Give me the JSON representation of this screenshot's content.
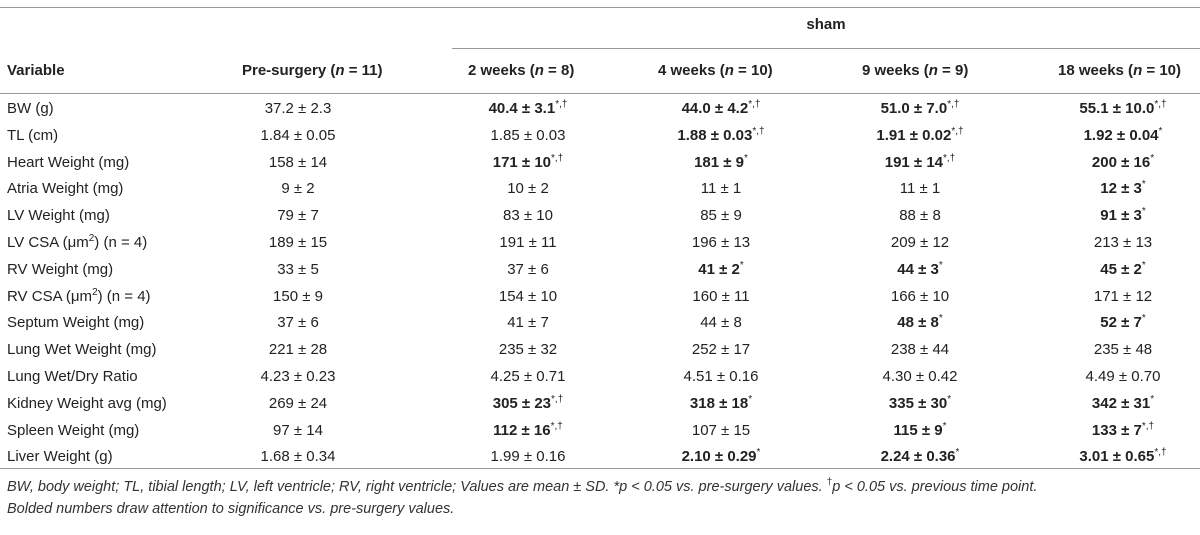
{
  "header": {
    "group_label": "sham",
    "variable": "Variable",
    "presurgery": "Pre-surgery (",
    "presurgery_n": "n",
    "presurgery_count": " = 11)",
    "cols": [
      {
        "label": "2 weeks (",
        "n": "n",
        "count": " = 8)"
      },
      {
        "label": "4 weeks (",
        "n": "n",
        "count": " = 10)"
      },
      {
        "label": "9 weeks (",
        "n": "n",
        "count": " = 9)"
      },
      {
        "label": "18 weeks (",
        "n": "n",
        "count": " = 10)"
      }
    ]
  },
  "rows": [
    {
      "variable": "BW (g)",
      "values": [
        {
          "v": "37.2 ± 2.3",
          "bold": false,
          "sup": ""
        },
        {
          "v": "40.4 ± 3.1",
          "bold": true,
          "sup": "*,†"
        },
        {
          "v": "44.0 ± 4.2",
          "bold": true,
          "sup": "*,†"
        },
        {
          "v": "51.0 ± 7.0",
          "bold": true,
          "sup": "*,†"
        },
        {
          "v": "55.1 ± 10.0",
          "bold": true,
          "sup": "*,†"
        }
      ]
    },
    {
      "variable": "TL (cm)",
      "values": [
        {
          "v": "1.84 ± 0.05",
          "bold": false,
          "sup": ""
        },
        {
          "v": "1.85 ± 0.03",
          "bold": false,
          "sup": ""
        },
        {
          "v": "1.88 ± 0.03",
          "bold": true,
          "sup": "*,†"
        },
        {
          "v": "1.91 ± 0.02",
          "bold": true,
          "sup": "*,†"
        },
        {
          "v": "1.92 ± 0.04",
          "bold": true,
          "sup": "*"
        }
      ]
    },
    {
      "variable": "Heart Weight (mg)",
      "values": [
        {
          "v": "158 ± 14",
          "bold": false,
          "sup": ""
        },
        {
          "v": "171 ± 10",
          "bold": true,
          "sup": "*,†"
        },
        {
          "v": "181 ± 9",
          "bold": true,
          "sup": "*"
        },
        {
          "v": "191 ± 14",
          "bold": true,
          "sup": "*,†"
        },
        {
          "v": "200 ± 16",
          "bold": true,
          "sup": "*"
        }
      ]
    },
    {
      "variable": "Atria Weight (mg)",
      "values": [
        {
          "v": "9 ± 2",
          "bold": false,
          "sup": ""
        },
        {
          "v": "10 ± 2",
          "bold": false,
          "sup": ""
        },
        {
          "v": "11 ± 1",
          "bold": false,
          "sup": ""
        },
        {
          "v": "11 ± 1",
          "bold": false,
          "sup": ""
        },
        {
          "v": "12 ± 3",
          "bold": true,
          "sup": "*"
        }
      ]
    },
    {
      "variable": "LV Weight (mg)",
      "values": [
        {
          "v": "79 ± 7",
          "bold": false,
          "sup": ""
        },
        {
          "v": "83 ± 10",
          "bold": false,
          "sup": ""
        },
        {
          "v": "85 ± 9",
          "bold": false,
          "sup": ""
        },
        {
          "v": "88 ± 8",
          "bold": false,
          "sup": ""
        },
        {
          "v": "91 ± 3",
          "bold": true,
          "sup": "*"
        }
      ]
    },
    {
      "variable": "LV CSA (μm",
      "variable_sup": "2",
      "variable_tail": ") (n = 4)",
      "values": [
        {
          "v": "189 ± 15",
          "bold": false,
          "sup": ""
        },
        {
          "v": "191 ± 11",
          "bold": false,
          "sup": ""
        },
        {
          "v": "196 ± 13",
          "bold": false,
          "sup": ""
        },
        {
          "v": "209 ± 12",
          "bold": false,
          "sup": ""
        },
        {
          "v": "213 ± 13",
          "bold": false,
          "sup": ""
        }
      ]
    },
    {
      "variable": "RV Weight (mg)",
      "values": [
        {
          "v": "33 ± 5",
          "bold": false,
          "sup": ""
        },
        {
          "v": "37 ± 6",
          "bold": false,
          "sup": ""
        },
        {
          "v": "41 ± 2",
          "bold": true,
          "sup": "*"
        },
        {
          "v": "44 ± 3",
          "bold": true,
          "sup": "*"
        },
        {
          "v": "45 ± 2",
          "bold": true,
          "sup": "*"
        }
      ]
    },
    {
      "variable": "RV CSA (μm",
      "variable_sup": "2",
      "variable_tail": ") (n = 4)",
      "values": [
        {
          "v": "150 ± 9",
          "bold": false,
          "sup": ""
        },
        {
          "v": "154 ± 10",
          "bold": false,
          "sup": ""
        },
        {
          "v": "160 ± 11",
          "bold": false,
          "sup": ""
        },
        {
          "v": "166 ± 10",
          "bold": false,
          "sup": ""
        },
        {
          "v": "171 ± 12",
          "bold": false,
          "sup": ""
        }
      ]
    },
    {
      "variable": "Septum Weight (mg)",
      "values": [
        {
          "v": "37 ± 6",
          "bold": false,
          "sup": ""
        },
        {
          "v": "41 ± 7",
          "bold": false,
          "sup": ""
        },
        {
          "v": "44 ± 8",
          "bold": false,
          "sup": ""
        },
        {
          "v": "48 ± 8",
          "bold": true,
          "sup": "*"
        },
        {
          "v": "52 ± 7",
          "bold": true,
          "sup": "*"
        }
      ]
    },
    {
      "variable": "Lung Wet Weight (mg)",
      "values": [
        {
          "v": "221 ± 28",
          "bold": false,
          "sup": ""
        },
        {
          "v": "235 ± 32",
          "bold": false,
          "sup": ""
        },
        {
          "v": "252 ± 17",
          "bold": false,
          "sup": ""
        },
        {
          "v": "238 ± 44",
          "bold": false,
          "sup": ""
        },
        {
          "v": "235 ± 48",
          "bold": false,
          "sup": ""
        }
      ]
    },
    {
      "variable": "Lung Wet/Dry Ratio",
      "values": [
        {
          "v": "4.23 ± 0.23",
          "bold": false,
          "sup": ""
        },
        {
          "v": "4.25 ± 0.71",
          "bold": false,
          "sup": ""
        },
        {
          "v": "4.51 ± 0.16",
          "bold": false,
          "sup": ""
        },
        {
          "v": "4.30 ± 0.42",
          "bold": false,
          "sup": ""
        },
        {
          "v": "4.49 ± 0.70",
          "bold": false,
          "sup": ""
        }
      ]
    },
    {
      "variable": "Kidney Weight avg (mg)",
      "values": [
        {
          "v": "269 ± 24",
          "bold": false,
          "sup": ""
        },
        {
          "v": "305 ± 23",
          "bold": true,
          "sup": "*,†"
        },
        {
          "v": "318 ± 18",
          "bold": true,
          "sup": "*"
        },
        {
          "v": "335 ± 30",
          "bold": true,
          "sup": "*"
        },
        {
          "v": "342 ± 31",
          "bold": true,
          "sup": "*"
        }
      ]
    },
    {
      "variable": "Spleen Weight (mg)",
      "values": [
        {
          "v": "97 ± 14",
          "bold": false,
          "sup": ""
        },
        {
          "v": "112 ± 16",
          "bold": true,
          "sup": "*,†"
        },
        {
          "v": "107 ± 15",
          "bold": false,
          "sup": ""
        },
        {
          "v": "115 ± 9",
          "bold": true,
          "sup": "*"
        },
        {
          "v": "133 ± 7",
          "bold": true,
          "sup": "*,†"
        }
      ]
    },
    {
      "variable": "Liver Weight (g)",
      "values": [
        {
          "v": "1.68 ± 0.34",
          "bold": false,
          "sup": ""
        },
        {
          "v": "1.99 ± 0.16",
          "bold": false,
          "sup": ""
        },
        {
          "v": "2.10 ± 0.29",
          "bold": true,
          "sup": "*"
        },
        {
          "v": "2.24 ± 0.36",
          "bold": true,
          "sup": "*"
        },
        {
          "v": "3.01 ± 0.65",
          "bold": true,
          "sup": "*,†"
        }
      ]
    }
  ],
  "footnote": {
    "line1_a": "BW, body weight; TL, tibial length; LV, left ventricle; RV, right ventricle; Values are mean ± SD. *",
    "line1_p1": "p",
    "line1_b": " < 0.05 vs. pre-surgery values. ",
    "line1_dag": "†",
    "line1_p2": "p",
    "line1_c": " < 0.05 vs. previous time point.",
    "line2": "Bolded numbers draw attention to significance vs. pre-surgery values."
  }
}
